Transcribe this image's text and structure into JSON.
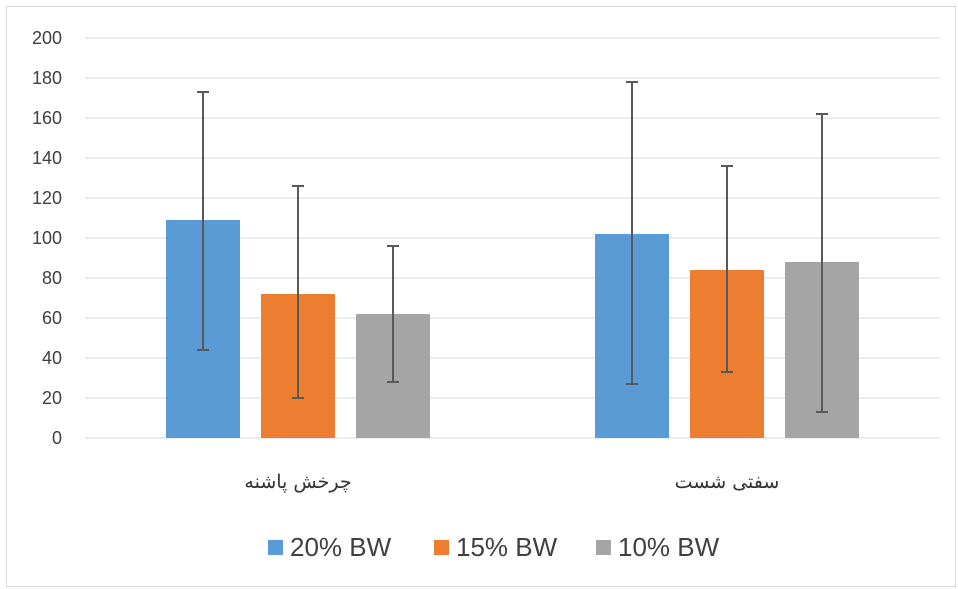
{
  "chart_data": {
    "type": "bar",
    "categories": [
      "چرخش پاشنه",
      "سفتی شست"
    ],
    "series": [
      {
        "name": "20% BW",
        "color": "#5b9bd5",
        "values": [
          109,
          102
        ],
        "error_low": [
          44,
          27
        ],
        "error_high": [
          173,
          178
        ]
      },
      {
        "name": "15% BW",
        "color": "#ed7d31",
        "values": [
          72,
          84
        ],
        "error_low": [
          20,
          33
        ],
        "error_high": [
          126,
          136
        ]
      },
      {
        "name": "10% BW",
        "color": "#a5a5a5",
        "values": [
          62,
          88
        ],
        "error_low": [
          28,
          13
        ],
        "error_high": [
          96,
          162
        ]
      }
    ],
    "yticks": [
      0,
      20,
      40,
      60,
      80,
      100,
      120,
      140,
      160,
      180,
      200
    ],
    "ylim": [
      0,
      200
    ],
    "grid": true,
    "legend_position": "bottom",
    "error_bar_color": "#595959",
    "grid_color": "#d9d9d9"
  }
}
